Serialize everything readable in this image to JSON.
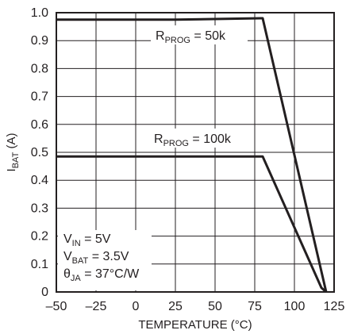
{
  "chart_data": {
    "type": "line",
    "xlabel": "TEMPERATURE (°C)",
    "ylabel": "I",
    "ylabel_sub": "BAT",
    "ylabel_unit": " (A)",
    "xlim": [
      -50,
      125
    ],
    "ylim": [
      0,
      1.0
    ],
    "xticks": [
      "–50",
      "–25",
      "0",
      "25",
      "50",
      "75",
      "100",
      "125"
    ],
    "yticks": [
      "0",
      "0.1",
      "0.2",
      "0.3",
      "0.4",
      "0.5",
      "0.6",
      "0.7",
      "0.8",
      "0.9",
      "1.0"
    ],
    "grid": true,
    "series": [
      {
        "name": "RPROG = 50k",
        "label": {
          "main": "R",
          "sub": "PROG",
          "rest": " = 50k"
        },
        "x": [
          -50,
          25,
          79,
          80,
          120
        ],
        "y": [
          0.975,
          0.975,
          0.98,
          0.98,
          0.0
        ]
      },
      {
        "name": "RPROG = 100k",
        "label": {
          "main": "R",
          "sub": "PROG",
          "rest": " = 100k"
        },
        "x": [
          -50,
          80,
          117,
          120
        ],
        "y": [
          0.485,
          0.485,
          0.015,
          0.0
        ]
      }
    ],
    "annotations": [
      {
        "main": "V",
        "sub": "IN",
        "rest": " = 5V"
      },
      {
        "main": "V",
        "sub": "BAT",
        "rest": " = 3.5V"
      },
      {
        "main": "θ",
        "sub": "JA",
        "rest": " = 37°C/W"
      }
    ],
    "line_color": "#231f20"
  }
}
